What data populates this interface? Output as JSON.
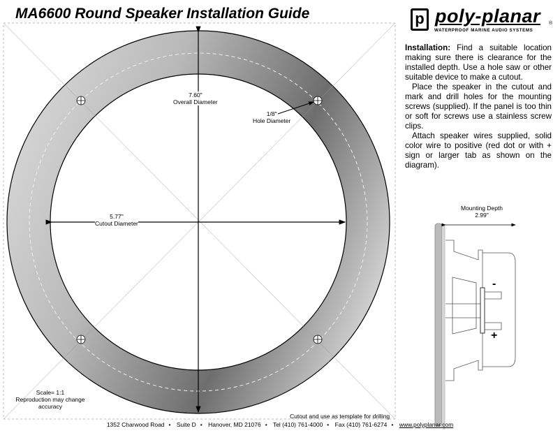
{
  "title": "MA6600 Round Speaker Installation Guide",
  "logo": {
    "wordmark": "poly-planar",
    "registered": "®",
    "tagline": "WATERPROOF MARINE AUDIO SYSTEMS",
    "mark": "p"
  },
  "instructions": {
    "heading": "Installation:",
    "p1": " Find a suitable location making sure there is clearance for the installed depth.  Use a hole saw or other suitable device to make a cutout.",
    "p2": "Place the speaker in the cutout and mark and drill holes for the mounting screws (supplied). If the panel is too thin or soft for screws use a stainless screw clips.",
    "p3": "Attach speaker wires supplied, solid color wire to positive (red dot or with + sign or larger tab as shown on the diagram)."
  },
  "dimensions": {
    "overall_value": "7.60\"",
    "overall_label": "Overall Diameter",
    "cutout_value": "5.77\"",
    "cutout_label": "Cutout Diameter",
    "hole_value": "1/8\"",
    "hole_label": "Hole Diameter",
    "depth_label": "Mounting Depth",
    "depth_value": "2.99\""
  },
  "terminals": {
    "negative": "-",
    "positive": "+"
  },
  "scale": {
    "line1": "Scale= 1:1",
    "line2": "Reproduction may change accuracy"
  },
  "cut_note": "Cutout and use as template for drilling",
  "footer": [
    "1352 Charwood Road",
    "Suite D",
    "Hanover, MD 21076",
    "Tel (410) 761-4000",
    "Fax (410) 761-6274",
    "www.polyplanar.com"
  ],
  "footer_separator": "•"
}
